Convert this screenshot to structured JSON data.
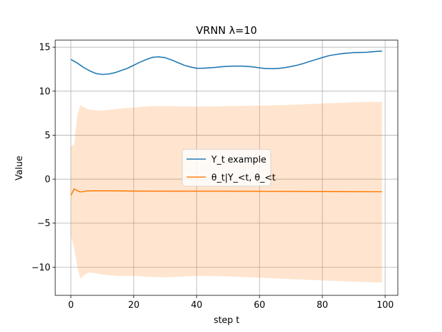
{
  "chart_data": {
    "type": "line",
    "title": "VRNN λ=10",
    "xlabel": "step t",
    "ylabel": "Value",
    "xlim": [
      -5,
      104
    ],
    "ylim": [
      -13.2,
      15.8
    ],
    "xticks": [
      0,
      20,
      40,
      60,
      80,
      100
    ],
    "yticks": [
      -10,
      -5,
      0,
      5,
      10,
      15
    ],
    "grid": true,
    "legend_position": "center",
    "series": [
      {
        "name": "Y_t example",
        "color": "#1f77b4",
        "x": [
          0,
          2,
          4,
          6,
          8,
          10,
          12,
          14,
          16,
          18,
          20,
          22,
          24,
          26,
          28,
          30,
          32,
          34,
          36,
          38,
          40,
          42,
          44,
          46,
          48,
          50,
          52,
          54,
          56,
          58,
          60,
          62,
          64,
          66,
          68,
          70,
          72,
          74,
          76,
          78,
          80,
          82,
          84,
          86,
          88,
          90,
          92,
          94,
          96,
          98,
          99
        ],
        "values": [
          13.6,
          13.2,
          12.7,
          12.3,
          12.0,
          11.9,
          11.95,
          12.1,
          12.35,
          12.6,
          12.95,
          13.3,
          13.6,
          13.85,
          13.9,
          13.8,
          13.55,
          13.25,
          12.95,
          12.75,
          12.6,
          12.6,
          12.65,
          12.7,
          12.78,
          12.83,
          12.85,
          12.85,
          12.82,
          12.75,
          12.65,
          12.57,
          12.55,
          12.58,
          12.67,
          12.8,
          12.95,
          13.15,
          13.38,
          13.6,
          13.82,
          14.02,
          14.15,
          14.25,
          14.32,
          14.38,
          14.4,
          14.42,
          14.48,
          14.54,
          14.55
        ]
      },
      {
        "name": "θ_t|Y_<t, θ_<t",
        "color": "#ff7f0e",
        "x": [
          0,
          1,
          2,
          3,
          4,
          5,
          6,
          8,
          10,
          15,
          20,
          30,
          40,
          50,
          60,
          70,
          80,
          90,
          99
        ],
        "values": [
          -1.85,
          -1.1,
          -1.3,
          -1.45,
          -1.4,
          -1.35,
          -1.33,
          -1.32,
          -1.32,
          -1.33,
          -1.36,
          -1.37,
          -1.37,
          -1.37,
          -1.38,
          -1.39,
          -1.4,
          -1.42,
          -1.43
        ],
        "band_x": [
          0,
          1,
          2,
          3,
          4,
          5,
          6,
          8,
          10,
          15,
          20,
          25,
          30,
          40,
          50,
          60,
          70,
          80,
          90,
          99
        ],
        "band_upper": [
          3.8,
          3.9,
          7.2,
          8.4,
          8.2,
          8.0,
          7.9,
          7.8,
          7.8,
          8.0,
          8.15,
          8.3,
          8.3,
          8.25,
          8.3,
          8.35,
          8.45,
          8.6,
          8.75,
          8.8
        ],
        "band_lower": [
          -6.5,
          -7.8,
          -10.0,
          -11.3,
          -11.0,
          -10.7,
          -10.6,
          -10.7,
          -10.85,
          -11.0,
          -11.0,
          -11.1,
          -11.15,
          -11.0,
          -11.05,
          -11.2,
          -11.35,
          -11.5,
          -11.65,
          -11.75
        ]
      }
    ]
  }
}
